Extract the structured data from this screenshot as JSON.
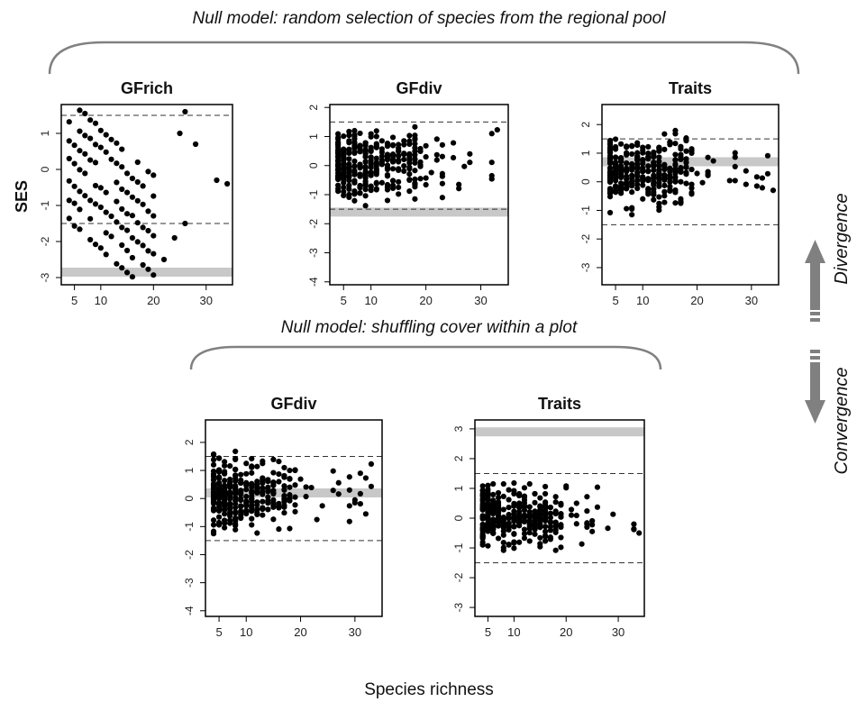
{
  "headers": {
    "top": "Null model: random selection of species from the regional pool",
    "bottom": "Null model: shuffling cover within a plot"
  },
  "ylabel": "SES",
  "xlabel": "Species richness",
  "arrows": {
    "up_label": "Divergence",
    "down_label": "Convergence"
  },
  "colors": {
    "points": "#000000",
    "band": "#c8c8c8",
    "brace": "#808080",
    "arrow": "#808080"
  },
  "chart_data": [
    {
      "type": "scatter",
      "title": "GFrich",
      "group": "regional pool",
      "xlim": [
        2.5,
        35
      ],
      "ylim": [
        -3.2,
        1.8
      ],
      "xticks": [
        5,
        10,
        20,
        30
      ],
      "yticks": [
        -3,
        -2,
        -1,
        0,
        1
      ],
      "ytick_labels": [
        "-3",
        "-2",
        "-1",
        "0",
        "1"
      ],
      "thresholds": [
        1.5,
        -1.5
      ],
      "observed_ses": -2.85,
      "grid": false,
      "points": []
    },
    {
      "type": "scatter",
      "title": "GFdiv",
      "group": "regional pool",
      "xlim": [
        2.5,
        35
      ],
      "ylim": [
        -4.1,
        2.1
      ],
      "xticks": [
        5,
        10,
        20,
        30
      ],
      "yticks": [
        -4,
        -3,
        -2,
        -1,
        0,
        1,
        2
      ],
      "ytick_labels": [
        "-4",
        "-3",
        "-2",
        "-1",
        "0",
        "1",
        "2"
      ],
      "thresholds": [
        1.5,
        -1.5
      ],
      "observed_ses": -1.6,
      "grid": false,
      "points": []
    },
    {
      "type": "scatter",
      "title": "Traits",
      "group": "regional pool",
      "xlim": [
        2.5,
        35
      ],
      "ylim": [
        -3.6,
        2.7
      ],
      "xticks": [
        5,
        10,
        20,
        30
      ],
      "yticks": [
        -3,
        -2,
        -1,
        0,
        1,
        2
      ],
      "ytick_labels": [
        "-3",
        "-2",
        "-1",
        "0",
        "1",
        "2"
      ],
      "thresholds": [
        1.5,
        -1.5
      ],
      "observed_ses": 0.7,
      "grid": false,
      "points": []
    },
    {
      "type": "scatter",
      "title": "GFdiv",
      "group": "shuffling cover",
      "xlim": [
        2.5,
        35
      ],
      "ylim": [
        -4.2,
        2.8
      ],
      "xticks": [
        5,
        10,
        20,
        30
      ],
      "yticks": [
        -4,
        -3,
        -2,
        -1,
        0,
        1,
        2
      ],
      "ytick_labels": [
        "-4",
        "-3",
        "-2",
        "-1",
        "0",
        "1",
        "2"
      ],
      "thresholds": [
        1.5,
        -1.5
      ],
      "observed_ses": 0.2,
      "grid": false,
      "points": []
    },
    {
      "type": "scatter",
      "title": "Traits",
      "group": "shuffling cover",
      "xlim": [
        2.5,
        35
      ],
      "ylim": [
        -3.3,
        3.3
      ],
      "xticks": [
        5,
        10,
        20,
        30
      ],
      "yticks": [
        -3,
        -2,
        -1,
        0,
        1,
        2,
        3
      ],
      "ytick_labels": [
        "-3",
        "-2",
        "-1",
        "0",
        "1",
        "2",
        "3"
      ],
      "thresholds": [
        1.5,
        -1.5
      ],
      "observed_ses": 2.9,
      "grid": false,
      "points": []
    }
  ]
}
